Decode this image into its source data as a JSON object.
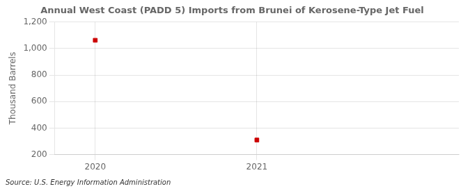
{
  "chart_data": {
    "type": "scatter",
    "title": "Annual West Coast (PADD 5) Imports from Brunei of Kerosene-Type Jet Fuel",
    "y_label": "Thousand Barrels",
    "annotations": [
      "Source: U.S. Energy Information Administration"
    ],
    "x": [
      2020,
      2021
    ],
    "values": [
      1062,
      310
    ],
    "color": "#cc0000",
    "marker": "square",
    "xlim": [
      2019.75,
      2022.25
    ],
    "xticks": [
      2020,
      2021
    ],
    "ylim": [
      200,
      1200
    ],
    "yticks": [
      200,
      400,
      600,
      800,
      {
        "value": 1000,
        "label": "1,000"
      },
      {
        "value": 1200,
        "label": "1,200"
      }
    ],
    "grid": true
  }
}
